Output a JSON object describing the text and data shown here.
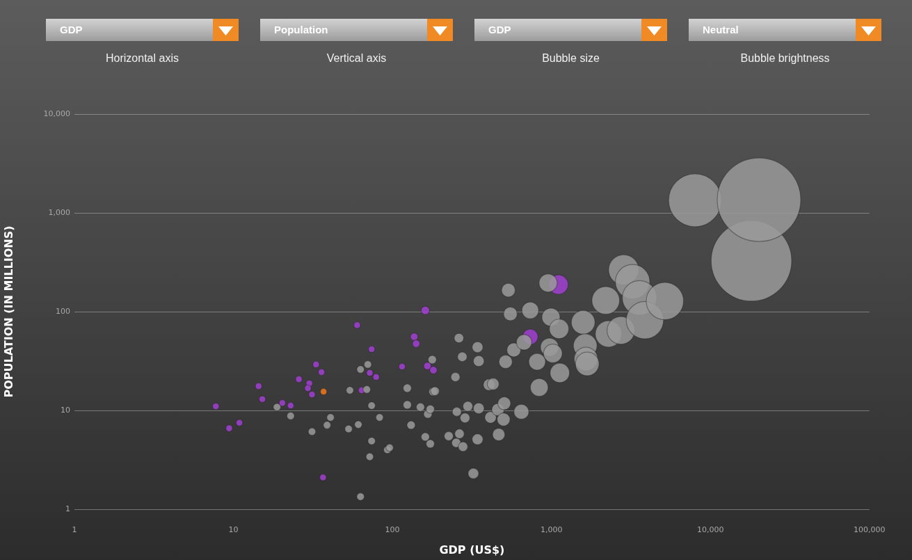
{
  "chart_data": {
    "type": "bubble",
    "xlabel": "GDP (US$)",
    "ylabel": "POPULATION (IN MILLIONS)",
    "annotations": [
      "GDP",
      "Horizontal axis",
      "Population",
      "Vertical axis",
      "GDP",
      "Bubble size",
      "Neutral",
      "Bubble brightness"
    ],
    "log": "xy",
    "grid": "y",
    "legend": false,
    "xlim": [
      1,
      100000
    ],
    "xticks": [
      1,
      {
        "value": 10,
        "label": "10"
      },
      {
        "value": 100,
        "label": "100"
      },
      {
        "value": 1000,
        "label": "1,000"
      },
      {
        "value": 10000,
        "label": "10,000"
      },
      {
        "value": 100000,
        "label": "100,000"
      }
    ],
    "ylim": [
      1,
      10000
    ],
    "yticks": [
      1,
      {
        "value": 10,
        "label": "10"
      },
      {
        "value": 100,
        "label": "100"
      },
      {
        "value": 1000,
        "label": "1,000"
      },
      {
        "value": 10000,
        "label": "10,000"
      }
    ],
    "series": [
      {
        "color": "#9a9a9a",
        "x": [
          18.8,
          22.9,
          31.2,
          38.8,
          40.8,
          53,
          61,
          54,
          63,
          70,
          69,
          74,
          83,
          74,
          93,
          96,
          72,
          63,
          124,
          124,
          131,
          150,
          167,
          173,
          161,
          173,
          178,
          180,
          185,
          226,
          249,
          252,
          254,
          262,
          264,
          275,
          278,
          286,
          298,
          323,
          343,
          343,
          349,
          349,
          405,
          414,
          430,
          461,
          466,
          500,
          505,
          515,
          536,
          552,
          580,
          647,
          673,
          736,
          813,
          838,
          953,
          973,
          993,
          1021,
          1117,
          1129,
          1583,
          1631,
          1648,
          1680,
          2196,
          2286,
          2735,
          2847,
          3240,
          3580,
          3870,
          5170,
          8000,
          18100,
          20200
        ],
        "values": [
          10.8,
          8.8,
          6.1,
          7.1,
          8.5,
          6.5,
          7.2,
          16.0,
          26.0,
          29.2,
          16.3,
          11.2,
          8.5,
          4.9,
          4.0,
          4.2,
          3.4,
          1.34,
          16.8,
          11.4,
          7.1,
          10.8,
          9.2,
          10.3,
          5.4,
          4.6,
          32.7,
          15.5,
          15.7,
          5.5,
          21.8,
          4.7,
          9.7,
          54,
          5.8,
          34.9,
          4.3,
          8.4,
          11.0,
          2.3,
          43.7,
          5.1,
          31.6,
          10.5,
          18.2,
          8.5,
          18.5,
          10.2,
          5.7,
          8.1,
          11.8,
          31.1,
          165,
          95,
          41.0,
          9.7,
          49.0,
          103,
          31.1,
          17.1,
          195,
          43.7,
          88,
          37.8,
          67,
          24.0,
          78,
          45.2,
          33.2,
          29.6,
          130,
          59.5,
          64.6,
          265,
          201,
          138,
          82,
          128,
          1340,
          327,
          1360
        ],
        "sizes": [
          0.008,
          0.008,
          0.008,
          0.008,
          0.008,
          0.008,
          0.008,
          0.008,
          0.008,
          0.008,
          0.008,
          0.008,
          0.008,
          0.008,
          0.008,
          0.008,
          0.008,
          0.008,
          0.01,
          0.01,
          0.01,
          0.01,
          0.01,
          0.01,
          0.01,
          0.01,
          0.01,
          0.01,
          0.011,
          0.012,
          0.012,
          0.012,
          0.012,
          0.013,
          0.013,
          0.013,
          0.013,
          0.014,
          0.014,
          0.016,
          0.017,
          0.017,
          0.017,
          0.017,
          0.019,
          0.019,
          0.02,
          0.022,
          0.022,
          0.024,
          0.024,
          0.026,
          0.027,
          0.027,
          0.028,
          0.032,
          0.034,
          0.04,
          0.04,
          0.045,
          0.047,
          0.047,
          0.047,
          0.05,
          0.054,
          0.054,
          0.08,
          0.08,
          0.08,
          0.08,
          0.11,
          0.1,
          0.11,
          0.13,
          0.17,
          0.17,
          0.2,
          0.2,
          0.4,
          0.93,
          1
        ]
      },
      {
        "color": "#a040d0",
        "x": [
          7.75,
          9.4,
          10.9,
          14.4,
          15.2,
          20.3,
          22.9,
          25.8,
          30.0,
          29.4,
          31.2,
          33.1,
          35.8,
          36.6,
          60,
          74,
          72,
          79,
          64,
          115,
          137,
          141,
          161,
          166,
          181,
          736,
          1107
        ],
        "values": [
          11.0,
          6.6,
          7.5,
          17.6,
          13.0,
          11.9,
          11.2,
          20.7,
          18.8,
          16.8,
          14.5,
          29.2,
          24.4,
          2.1,
          73,
          41.7,
          24.0,
          21.8,
          16.0,
          27.8,
          55.7,
          47.4,
          103,
          28.2,
          25.6,
          55.7,
          188
        ],
        "sizes": [
          0.006,
          0.006,
          0.006,
          0.006,
          0.006,
          0.006,
          0.006,
          0.006,
          0.006,
          0.006,
          0.006,
          0.006,
          0.006,
          0.006,
          0.006,
          0.006,
          0.006,
          0.006,
          0.006,
          0.006,
          0.008,
          0.008,
          0.01,
          0.008,
          0.008,
          0.034,
          0.054
        ]
      },
      {
        "color": "#f07820",
        "x": [
          36.9
        ],
        "values": [
          15.5
        ],
        "sizes": [
          0.006
        ]
      }
    ]
  }
}
